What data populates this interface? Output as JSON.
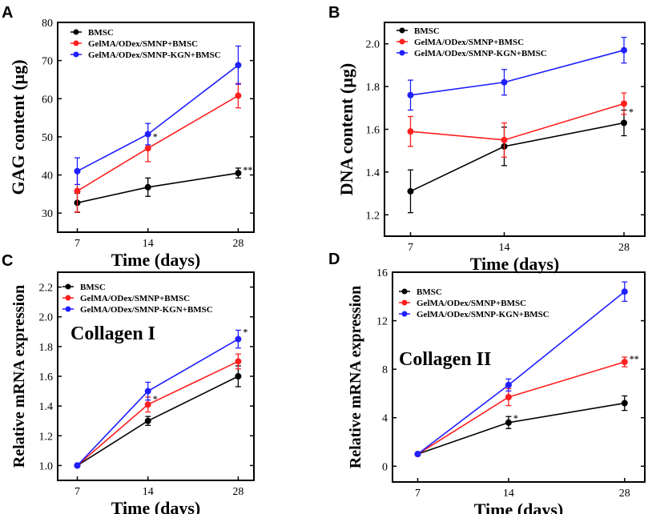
{
  "figure": {
    "series_colors": [
      "#000000",
      "#ff1f1f",
      "#1f1fff"
    ]
  },
  "chart_data": [
    {
      "panel": "A",
      "type": "line",
      "x": [
        "7",
        "14",
        "28"
      ],
      "xlabel": "Time (days)",
      "ylabel": "GAG content (µg)",
      "ylim": [
        25,
        80
      ],
      "yticks": [
        30,
        40,
        50,
        60,
        70,
        80
      ],
      "ytick_labels": [
        "30",
        "40",
        "50",
        "60",
        "70",
        "80"
      ],
      "legend": "top-left",
      "series": [
        {
          "name": "BMSC",
          "color": "#000000",
          "values": [
            32.7,
            36.8,
            40.5
          ],
          "errors": [
            2.5,
            2.4,
            1.3
          ]
        },
        {
          "name": "GelMA/ODex/SMNP+BMSC",
          "color": "#ff1f1f",
          "values": [
            35.8,
            47.0,
            60.8
          ],
          "errors": [
            5.5,
            3.5,
            3.2
          ]
        },
        {
          "name": "GelMA/ODex/SMNP-KGN+BMSC",
          "color": "#1f1fff",
          "values": [
            41.0,
            50.7,
            68.8
          ],
          "errors": [
            3.5,
            2.8,
            5.0
          ]
        }
      ],
      "annotations": [
        {
          "text": "*",
          "series": 1,
          "point": 1
        },
        {
          "text": "**",
          "series": 0,
          "point": 2
        }
      ]
    },
    {
      "panel": "B",
      "type": "line",
      "x": [
        "7",
        "14",
        "28"
      ],
      "xlabel": "Time (days)",
      "ylabel": "DNA content (µg)",
      "ylim": [
        1.1,
        2.1
      ],
      "yticks": [
        1.2,
        1.4,
        1.6,
        1.8,
        2.0
      ],
      "ytick_labels": [
        "1.2",
        "1.4",
        "1.6",
        "1.8",
        "2.0"
      ],
      "legend": "top-left",
      "series": [
        {
          "name": "BMSC",
          "color": "#000000",
          "values": [
            1.31,
            1.52,
            1.63
          ],
          "errors": [
            0.1,
            0.09,
            0.06
          ]
        },
        {
          "name": "GelMA/ODex/SMNP+BMSC",
          "color": "#ff1f1f",
          "values": [
            1.59,
            1.55,
            1.72
          ],
          "errors": [
            0.07,
            0.08,
            0.05
          ]
        },
        {
          "name": "GelMA/ODex/SMNP-KGN+BMSC",
          "color": "#1f1fff",
          "values": [
            1.76,
            1.82,
            1.97
          ],
          "errors": [
            0.07,
            0.06,
            0.06
          ]
        }
      ],
      "annotations": [
        {
          "text": "*",
          "series": 0,
          "point": 2
        }
      ]
    },
    {
      "panel": "C",
      "type": "line",
      "x": [
        "7",
        "14",
        "28"
      ],
      "xlabel": "Time (days)",
      "ylabel": "Relative mRNA expression",
      "ylim": [
        0.9,
        2.3
      ],
      "yticks": [
        1.0,
        1.2,
        1.4,
        1.6,
        1.8,
        2.0,
        2.2
      ],
      "ytick_labels": [
        "1.0",
        "1.2",
        "1.4",
        "1.6",
        "1.8",
        "2.0",
        "2.2"
      ],
      "legend": "top-left",
      "inset_label": "Collagen I",
      "series": [
        {
          "name": "BMSC",
          "color": "#000000",
          "values": [
            1.0,
            1.3,
            1.6
          ],
          "errors": [
            0,
            0.03,
            0.07
          ]
        },
        {
          "name": "GelMA/ODex/SMNP+BMSC",
          "color": "#ff1f1f",
          "values": [
            1.0,
            1.41,
            1.7
          ],
          "errors": [
            0,
            0.05,
            0.05
          ]
        },
        {
          "name": "GelMA/ODex/SMNP-KGN+BMSC",
          "color": "#1f1fff",
          "values": [
            1.0,
            1.5,
            1.85
          ],
          "errors": [
            0,
            0.06,
            0.06
          ]
        }
      ],
      "annotations": [
        {
          "text": "*",
          "series": 1,
          "point": 1
        },
        {
          "text": "*",
          "series": 2,
          "point": 2
        }
      ]
    },
    {
      "panel": "D",
      "type": "line",
      "x": [
        "7",
        "14",
        "28"
      ],
      "xlabel": "Time (days)",
      "ylabel": "Relative mRNA expression",
      "ylim": [
        -1.3,
        16
      ],
      "yticks": [
        0,
        4,
        8,
        12,
        16
      ],
      "ytick_labels": [
        "0",
        "4",
        "8",
        "12",
        "16"
      ],
      "legend": "top-left",
      "inset_label": "Collagen II",
      "series": [
        {
          "name": "BMSC",
          "color": "#000000",
          "values": [
            1.0,
            3.6,
            5.2
          ],
          "errors": [
            0,
            0.5,
            0.6
          ]
        },
        {
          "name": "GelMA/ODex/SMNP+BMSC",
          "color": "#ff1f1f",
          "values": [
            1.0,
            5.7,
            8.6
          ],
          "errors": [
            0,
            0.7,
            0.4
          ]
        },
        {
          "name": "GelMA/ODex/SMNP-KGN+BMSC",
          "color": "#1f1fff",
          "values": [
            1.0,
            6.7,
            14.4
          ],
          "errors": [
            0,
            0.5,
            0.8
          ]
        }
      ],
      "annotations": [
        {
          "text": "*",
          "series": 0,
          "point": 1
        },
        {
          "text": "**",
          "series": 1,
          "point": 2
        }
      ]
    }
  ]
}
